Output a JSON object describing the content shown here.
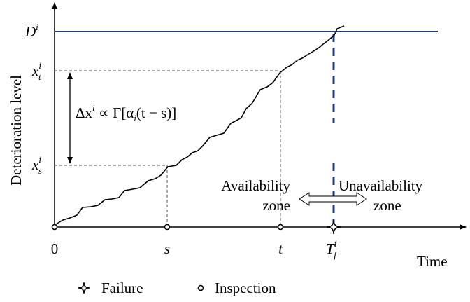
{
  "y_axis_label": "Deterioration level",
  "x_axis_label": "Time",
  "threshold": {
    "base": "D",
    "sup": "i"
  },
  "levels": [
    {
      "base": "x",
      "sup": "i",
      "sub": "t"
    },
    {
      "base": "x",
      "sup": "i",
      "sub": "s"
    }
  ],
  "times": [
    "0",
    "s",
    "t"
  ],
  "failure_time": {
    "base": "T",
    "sup": "i",
    "sub": "f"
  },
  "increment_formula": [
    {
      "text": "Δx"
    },
    {
      "sup": "i"
    },
    {
      "text": " ∝ Γ[α"
    },
    {
      "sub": "i"
    },
    {
      "text": "(t − s)]"
    }
  ],
  "zones": {
    "availability": [
      "Availability",
      "zone"
    ],
    "unavailability": [
      "Unavailability",
      "zone"
    ]
  },
  "legend": [
    "Failure",
    "Inspection"
  ]
}
